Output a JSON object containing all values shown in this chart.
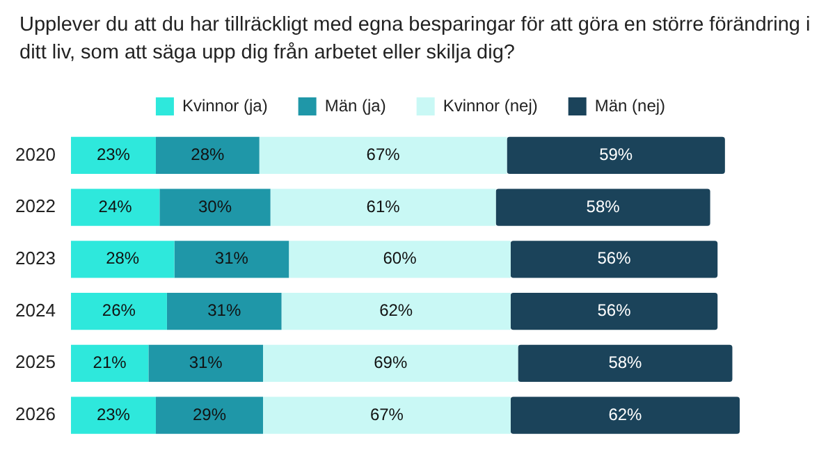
{
  "chart_data": {
    "type": "bar",
    "orientation": "horizontal",
    "stacked": true,
    "tick_labels": "y",
    "title": "Upplever du att du har tillräckligt med egna besparingar för att göra en större förändring i ditt liv, som att säga upp dig från arbetet eller skilja dig?",
    "categories": [
      "2020",
      "2022",
      "2023",
      "2024",
      "2025",
      "2026"
    ],
    "legend": "top",
    "series": [
      {
        "name": "Kvinnor (ja)",
        "color": "#2ee8dc",
        "values": [
          23,
          24,
          28,
          26,
          21,
          23
        ],
        "value_labels": [
          "23%",
          "24%",
          "28%",
          "26%",
          "21%",
          "23%"
        ]
      },
      {
        "name": "Män (ja)",
        "color": "#1f97a8",
        "values": [
          28,
          30,
          31,
          31,
          31,
          29
        ],
        "value_labels": [
          "28%",
          "30%",
          "31%",
          "31%",
          "31%",
          "29%"
        ]
      },
      {
        "name": "Kvinnor (nej)",
        "color": "#c9f8f5",
        "values": [
          67,
          61,
          60,
          62,
          69,
          67
        ],
        "value_labels": [
          "67%",
          "61%",
          "60%",
          "62%",
          "69%",
          "67%"
        ]
      },
      {
        "name": "Män (nej)",
        "color": "#1b435a",
        "values": [
          59,
          58,
          56,
          56,
          58,
          62
        ],
        "value_labels": [
          "59%",
          "58%",
          "56%",
          "56%",
          "58%",
          "62%"
        ]
      }
    ]
  }
}
